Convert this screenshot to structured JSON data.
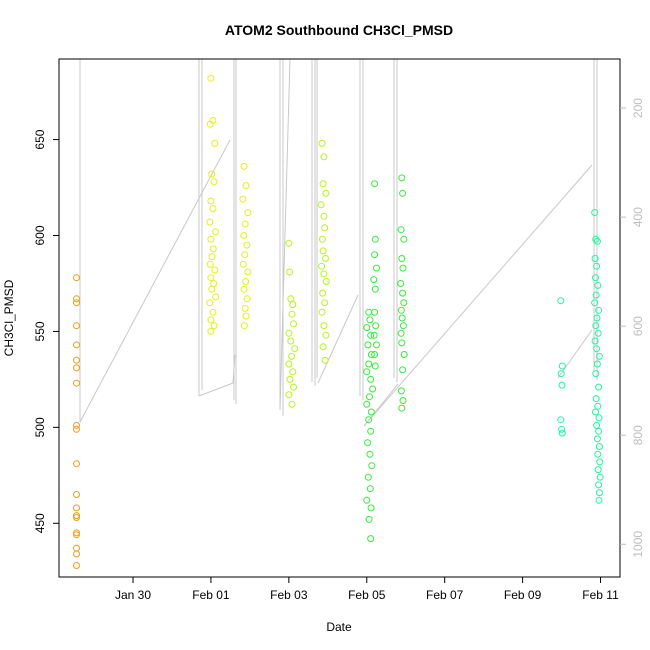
{
  "chart_data": {
    "type": "scatter",
    "title": "ATOM2 Southbound CH3Cl_PMSD",
    "xlabel": "Date",
    "ylabel": "CH3Cl_PMSD",
    "x_ticks": [
      "Jan 30",
      "Feb 01",
      "Feb 03",
      "Feb 05",
      "Feb 07",
      "Feb 09",
      "Feb 11"
    ],
    "x_tick_values": [
      29.0,
      31.0,
      33.0,
      35.0,
      37.0,
      39.0,
      41.0
    ],
    "xlim": [
      27.1,
      41.5
    ],
    "ylim": [
      422,
      692
    ],
    "y_ticks": [
      450,
      500,
      550,
      600,
      650
    ],
    "y2_ticks": [
      200,
      400,
      600,
      800,
      1000
    ],
    "y2lim": [
      1060,
      110
    ],
    "y2_reversed": true,
    "grid": false,
    "marker": "open-circle",
    "altitude_trace_color": "#c8c8c8",
    "series": [
      {
        "color": "#f39c1a",
        "points": [
          [
            27.55,
            578
          ],
          [
            27.55,
            567
          ],
          [
            27.55,
            565
          ],
          [
            27.55,
            553
          ],
          [
            27.55,
            543
          ],
          [
            27.55,
            535
          ],
          [
            27.55,
            531
          ],
          [
            27.55,
            523
          ],
          [
            27.55,
            501
          ],
          [
            27.55,
            499
          ],
          [
            27.55,
            481
          ],
          [
            27.55,
            465
          ],
          [
            27.55,
            458
          ],
          [
            27.55,
            454
          ],
          [
            27.55,
            453
          ],
          [
            27.55,
            445
          ],
          [
            27.55,
            444
          ],
          [
            27.55,
            437
          ],
          [
            27.55,
            434
          ],
          [
            27.55,
            428
          ]
        ]
      },
      {
        "color": "#e7ee18",
        "points": [
          [
            31.0,
            682
          ],
          [
            31.05,
            660
          ],
          [
            30.98,
            658
          ],
          [
            31.1,
            648
          ],
          [
            31.02,
            632
          ],
          [
            31.08,
            628
          ],
          [
            31.0,
            618
          ],
          [
            31.05,
            614
          ],
          [
            30.97,
            607
          ],
          [
            31.12,
            602
          ],
          [
            31.0,
            598
          ],
          [
            31.06,
            593
          ],
          [
            31.03,
            589
          ],
          [
            30.98,
            585
          ],
          [
            31.1,
            582
          ],
          [
            31.0,
            578
          ],
          [
            31.07,
            575
          ],
          [
            31.02,
            572
          ],
          [
            31.12,
            568
          ],
          [
            30.97,
            565
          ],
          [
            31.05,
            560
          ],
          [
            31.0,
            556
          ],
          [
            31.08,
            553
          ],
          [
            31.0,
            550
          ],
          [
            31.85,
            636
          ],
          [
            31.9,
            626
          ],
          [
            31.82,
            619
          ],
          [
            31.95,
            612
          ],
          [
            31.88,
            606
          ],
          [
            31.84,
            600
          ],
          [
            31.92,
            595
          ],
          [
            31.87,
            590
          ],
          [
            31.83,
            585
          ],
          [
            31.95,
            581
          ],
          [
            31.89,
            576
          ],
          [
            31.85,
            572
          ],
          [
            31.93,
            567
          ],
          [
            31.88,
            562
          ],
          [
            31.9,
            558
          ],
          [
            31.86,
            553
          ]
        ]
      },
      {
        "color": "#b4f51a",
        "points": [
          [
            33.0,
            596
          ],
          [
            33.02,
            581
          ],
          [
            33.05,
            567
          ],
          [
            33.1,
            564
          ],
          [
            33.08,
            559
          ],
          [
            33.12,
            554
          ],
          [
            33.0,
            549
          ],
          [
            33.05,
            545
          ],
          [
            33.15,
            541
          ],
          [
            33.07,
            537
          ],
          [
            33.0,
            533
          ],
          [
            33.1,
            529
          ],
          [
            33.03,
            525
          ],
          [
            33.12,
            521
          ],
          [
            33.0,
            517
          ],
          [
            33.08,
            512
          ],
          [
            33.85,
            648
          ],
          [
            33.9,
            641
          ],
          [
            33.88,
            627
          ],
          [
            33.95,
            622
          ],
          [
            33.83,
            616
          ],
          [
            33.9,
            610
          ],
          [
            33.92,
            604
          ],
          [
            33.86,
            598
          ],
          [
            33.88,
            592
          ],
          [
            33.94,
            588
          ],
          [
            33.84,
            584
          ],
          [
            33.9,
            580
          ],
          [
            33.96,
            576
          ],
          [
            33.87,
            570
          ],
          [
            33.92,
            565
          ],
          [
            33.85,
            560
          ],
          [
            33.9,
            553
          ],
          [
            33.95,
            548
          ],
          [
            33.88,
            542
          ],
          [
            33.93,
            535
          ]
        ]
      },
      {
        "color": "#33ee38",
        "points": [
          [
            35.05,
            560
          ],
          [
            35.08,
            556
          ],
          [
            35.0,
            552
          ],
          [
            35.1,
            548
          ],
          [
            35.03,
            543
          ],
          [
            35.12,
            538
          ],
          [
            35.05,
            533
          ],
          [
            35.0,
            529
          ],
          [
            35.1,
            525
          ],
          [
            35.15,
            520
          ],
          [
            35.07,
            516
          ],
          [
            35.0,
            512
          ],
          [
            35.12,
            508
          ],
          [
            35.05,
            504
          ],
          [
            35.1,
            498
          ],
          [
            35.02,
            492
          ],
          [
            35.08,
            486
          ],
          [
            35.13,
            480
          ],
          [
            35.04,
            474
          ],
          [
            35.09,
            468
          ],
          [
            35.0,
            462
          ],
          [
            35.11,
            458
          ],
          [
            35.06,
            452
          ],
          [
            35.1,
            442
          ],
          [
            35.2,
            627
          ],
          [
            35.22,
            598
          ],
          [
            35.2,
            590
          ],
          [
            35.25,
            583
          ],
          [
            35.18,
            577
          ],
          [
            35.22,
            572
          ],
          [
            35.2,
            560
          ],
          [
            35.23,
            553
          ],
          [
            35.19,
            548
          ],
          [
            35.25,
            543
          ],
          [
            35.2,
            538
          ],
          [
            35.22,
            532
          ],
          [
            35.9,
            630
          ],
          [
            35.92,
            622
          ],
          [
            35.88,
            603
          ],
          [
            35.95,
            598
          ],
          [
            35.9,
            588
          ],
          [
            35.93,
            583
          ],
          [
            35.87,
            575
          ],
          [
            35.92,
            570
          ],
          [
            35.95,
            565
          ],
          [
            35.89,
            561
          ],
          [
            35.91,
            557
          ],
          [
            35.94,
            553
          ],
          [
            35.88,
            549
          ],
          [
            35.9,
            544
          ],
          [
            35.96,
            538
          ],
          [
            35.92,
            530
          ],
          [
            35.89,
            519
          ],
          [
            35.93,
            514
          ],
          [
            35.9,
            510
          ]
        ]
      },
      {
        "color": "#22f59f",
        "points": [
          [
            39.98,
            566
          ],
          [
            40.02,
            532
          ],
          [
            39.99,
            528
          ],
          [
            40.01,
            522
          ],
          [
            39.98,
            504
          ],
          [
            40.0,
            499
          ],
          [
            40.02,
            497
          ],
          [
            40.85,
            612
          ],
          [
            40.88,
            598
          ],
          [
            40.92,
            597
          ],
          [
            40.86,
            588
          ],
          [
            40.9,
            584
          ],
          [
            40.87,
            578
          ],
          [
            40.93,
            574
          ],
          [
            40.89,
            569
          ],
          [
            40.85,
            565
          ],
          [
            40.95,
            561
          ],
          [
            40.91,
            557
          ],
          [
            40.88,
            553
          ],
          [
            40.94,
            549
          ],
          [
            40.86,
            545
          ],
          [
            40.9,
            541
          ],
          [
            40.97,
            537
          ],
          [
            40.92,
            533
          ],
          [
            40.88,
            528
          ],
          [
            40.95,
            521
          ],
          [
            40.89,
            515
          ],
          [
            40.93,
            511
          ],
          [
            40.87,
            508
          ],
          [
            40.96,
            505
          ],
          [
            40.9,
            501
          ],
          [
            40.95,
            498
          ],
          [
            40.92,
            494
          ],
          [
            40.97,
            490
          ],
          [
            40.93,
            486
          ],
          [
            40.98,
            482
          ],
          [
            40.94,
            478
          ],
          [
            40.99,
            474
          ],
          [
            40.95,
            470
          ],
          [
            40.97,
            466
          ],
          [
            40.96,
            462
          ]
        ]
      }
    ]
  }
}
